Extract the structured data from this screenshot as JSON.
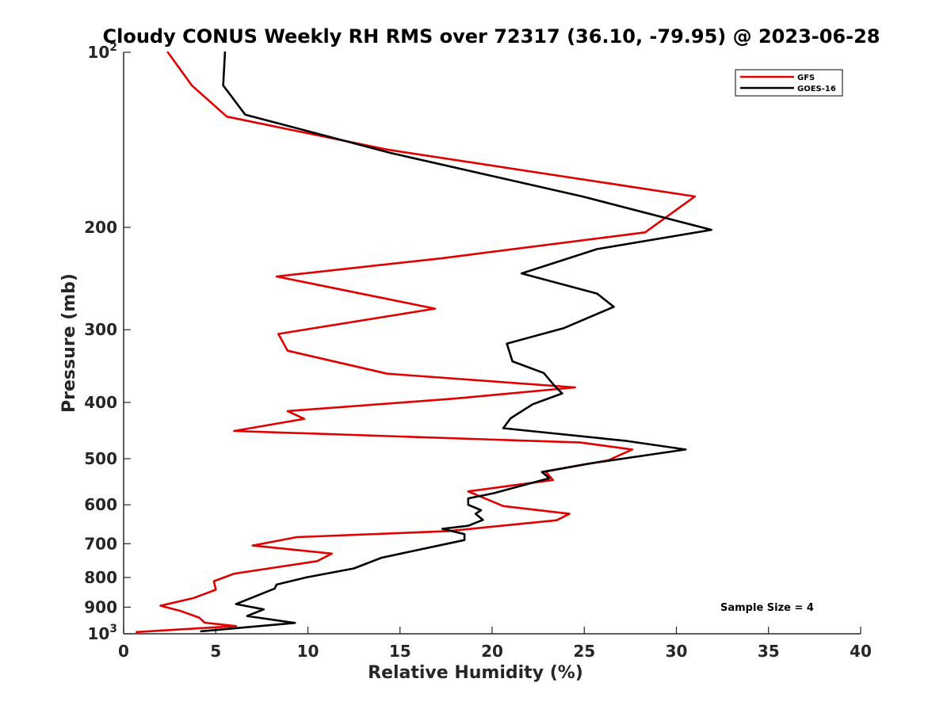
{
  "chart_data": {
    "type": "line",
    "title": "Cloudy CONUS Weekly RH RMS over 72317 (36.10, -79.95) @ 2023-06-28",
    "xlabel": "Relative Humidity (%)",
    "ylabel": "Pressure (mb)",
    "xlim": [
      0,
      40
    ],
    "ylim": [
      100,
      1000
    ],
    "y_scale": "log",
    "y_reversed": true,
    "grid": false,
    "x_ticks": [
      0,
      5,
      10,
      15,
      20,
      25,
      30,
      35,
      40
    ],
    "y_ticks": [
      {
        "value": 100,
        "base": "10",
        "exp": "2"
      },
      {
        "value": 200,
        "label": "200"
      },
      {
        "value": 300,
        "label": "300"
      },
      {
        "value": 400,
        "label": "400"
      },
      {
        "value": 500,
        "label": "500"
      },
      {
        "value": 600,
        "label": "600"
      },
      {
        "value": 700,
        "label": "700"
      },
      {
        "value": 800,
        "label": "800"
      },
      {
        "value": 900,
        "label": "900"
      },
      {
        "value": 1000,
        "base": "10",
        "exp": "3"
      }
    ],
    "legend": {
      "position": "top-right"
    },
    "series": [
      {
        "name": "GFS",
        "color": "#e00000",
        "points": [
          [
            2.4,
            100
          ],
          [
            3.7,
            114
          ],
          [
            5.6,
            129
          ],
          [
            14.3,
            147
          ],
          [
            31.0,
            177
          ],
          [
            28.3,
            204
          ],
          [
            17.3,
            226
          ],
          [
            8.3,
            243
          ],
          [
            16.9,
            276
          ],
          [
            8.4,
            305
          ],
          [
            8.9,
            326
          ],
          [
            14.3,
            357
          ],
          [
            24.5,
            377
          ],
          [
            18.0,
            394
          ],
          [
            8.9,
            414
          ],
          [
            9.8,
            427
          ],
          [
            6.0,
            448
          ],
          [
            24.8,
            469
          ],
          [
            27.6,
            482
          ],
          [
            26.3,
            503
          ],
          [
            22.9,
            526
          ],
          [
            23.3,
            544
          ],
          [
            18.7,
            569
          ],
          [
            20.6,
            603
          ],
          [
            24.2,
            622
          ],
          [
            23.5,
            638
          ],
          [
            17.6,
            666
          ],
          [
            9.4,
            682
          ],
          [
            7.0,
            705
          ],
          [
            11.3,
            728
          ],
          [
            10.5,
            750
          ],
          [
            6.0,
            788
          ],
          [
            4.9,
            812
          ],
          [
            5.0,
            840
          ],
          [
            3.8,
            868
          ],
          [
            2.0,
            895
          ],
          [
            3.1,
            914
          ],
          [
            4.1,
            938
          ],
          [
            4.4,
            957
          ],
          [
            6.1,
            970
          ],
          [
            0.7,
            993
          ]
        ]
      },
      {
        "name": "GOES-16",
        "color": "#000000",
        "points": [
          [
            5.5,
            100
          ],
          [
            5.4,
            114
          ],
          [
            6.6,
            128
          ],
          [
            14.5,
            149
          ],
          [
            24.9,
            177
          ],
          [
            31.9,
            202
          ],
          [
            25.7,
            218
          ],
          [
            21.6,
            240
          ],
          [
            25.7,
            260
          ],
          [
            26.6,
            274
          ],
          [
            23.9,
            298
          ],
          [
            20.8,
            317
          ],
          [
            21.1,
            340
          ],
          [
            22.8,
            356
          ],
          [
            23.4,
            375
          ],
          [
            23.8,
            386
          ],
          [
            22.2,
            403
          ],
          [
            21.0,
            426
          ],
          [
            20.6,
            443
          ],
          [
            27.3,
            466
          ],
          [
            30.5,
            482
          ],
          [
            25.2,
            510
          ],
          [
            22.7,
            527
          ],
          [
            23.1,
            540
          ],
          [
            20.1,
            573
          ],
          [
            18.7,
            585
          ],
          [
            18.7,
            600
          ],
          [
            19.4,
            613
          ],
          [
            19.1,
            622
          ],
          [
            19.5,
            637
          ],
          [
            18.7,
            652
          ],
          [
            17.3,
            660
          ],
          [
            18.5,
            674
          ],
          [
            18.5,
            690
          ],
          [
            14.0,
            740
          ],
          [
            12.5,
            772
          ],
          [
            9.9,
            800
          ],
          [
            8.3,
            823
          ],
          [
            8.2,
            836
          ],
          [
            6.1,
            889
          ],
          [
            7.6,
            908
          ],
          [
            6.7,
            932
          ],
          [
            9.3,
            958
          ],
          [
            4.2,
            990
          ]
        ]
      }
    ],
    "annotations": [
      "Sample Size = 4"
    ]
  }
}
